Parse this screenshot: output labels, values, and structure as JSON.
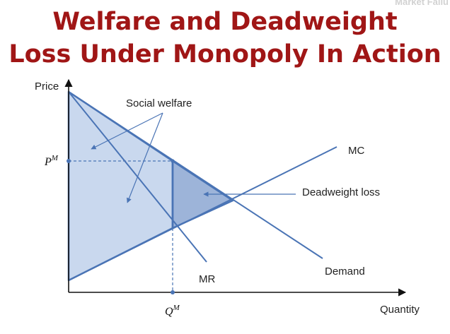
{
  "corner_tag": "Market Failu",
  "title": {
    "line1": "Welfare and Deadweight",
    "line2": "Loss Under Monopoly In Action"
  },
  "diagram": {
    "axis_y_label": "Price",
    "axis_x_label": "Quantity",
    "price_marker": {
      "base": "P",
      "sup": "M"
    },
    "quantity_marker": {
      "base": "Q",
      "sup": "M"
    },
    "curve_labels": {
      "mc": "MC",
      "mr": "MR",
      "demand": "Demand"
    },
    "annotations": {
      "social_welfare": "Social welfare",
      "deadweight_loss": "Deadweight loss"
    },
    "colors": {
      "title": "#a01616",
      "line": "#4a74b5",
      "social_welfare_fill": "#c9d8ee",
      "deadweight_loss_fill": "#9db4d9",
      "axis": "#111111"
    }
  }
}
